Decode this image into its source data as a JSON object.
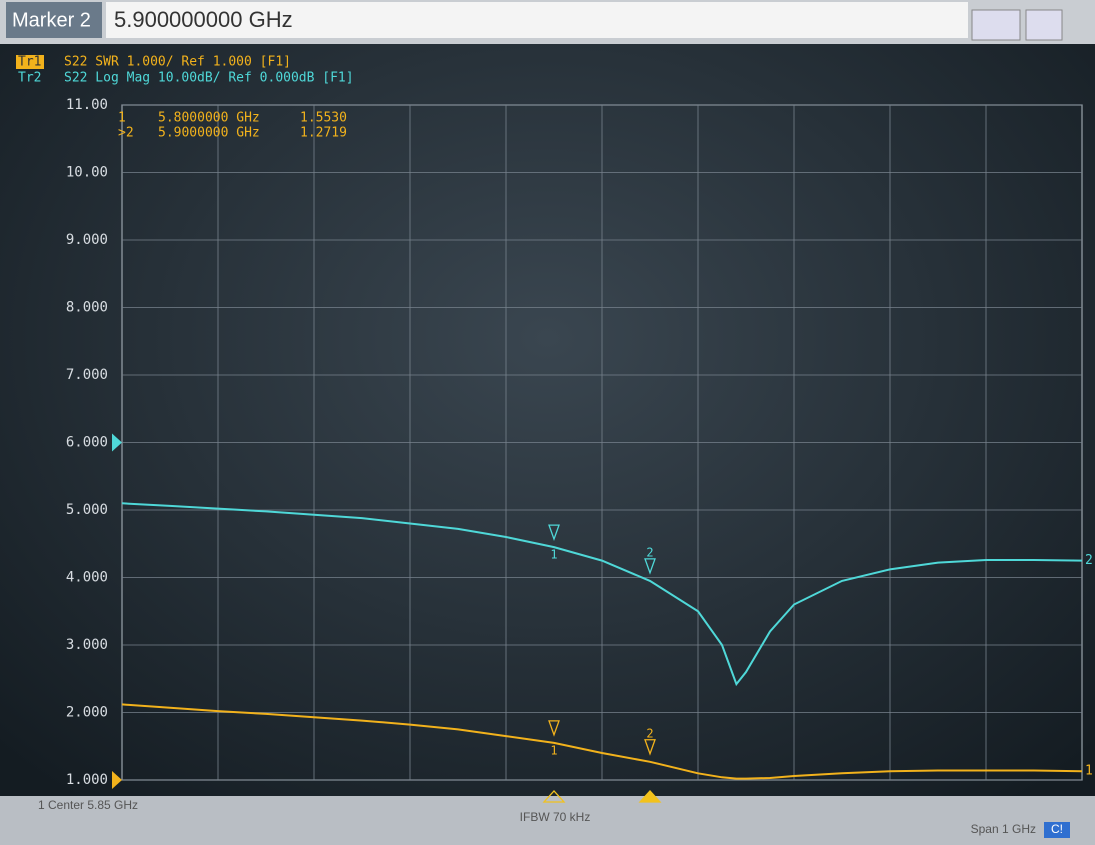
{
  "marker_bar": {
    "label": "Marker 2",
    "value": "5.900000000 GHz"
  },
  "marker_table": [
    [
      "1",
      "5.8000000 GHz",
      "1.5530"
    ],
    [
      ">2",
      "5.9000000 GHz",
      "1.2719"
    ]
  ],
  "chart_data": {
    "type": "line",
    "x": [
      5.35,
      5.4,
      5.45,
      5.5,
      5.55,
      5.6,
      5.65,
      5.7,
      5.75,
      5.8,
      5.85,
      5.9,
      5.95,
      5.975,
      5.99,
      6.0,
      6.025,
      6.05,
      6.1,
      6.15,
      6.2,
      6.25,
      6.3,
      6.35
    ],
    "xlim": [
      5.35,
      6.35
    ],
    "ylim": [
      1,
      11
    ],
    "yticks": [
      {
        "value": 11,
        "label": "11.00"
      },
      {
        "value": 10,
        "label": "10.00"
      },
      {
        "value": 9,
        "label": "9.000"
      },
      {
        "value": 8,
        "label": "8.000"
      },
      {
        "value": 7,
        "label": "7.000"
      },
      {
        "value": 6,
        "label": "6.000"
      },
      {
        "value": 5,
        "label": "5.000"
      },
      {
        "value": 4,
        "label": "4.000"
      },
      {
        "value": 3,
        "label": "3.000"
      },
      {
        "value": 2,
        "label": "2.000"
      },
      {
        "value": 1,
        "label": "1.000"
      }
    ],
    "y2lim": [
      -50,
      50
    ],
    "series": [
      {
        "id": "Tr1",
        "name": "S22 SWR 1.000/ Ref 1.000 [F1]",
        "end_label": "1",
        "ref": 1,
        "color": "#f2b21c",
        "values": [
          2.12,
          2.07,
          2.02,
          1.98,
          1.93,
          1.88,
          1.82,
          1.75,
          1.65,
          1.55,
          1.4,
          1.27,
          1.1,
          1.04,
          1.02,
          1.02,
          1.03,
          1.06,
          1.1,
          1.13,
          1.14,
          1.14,
          1.14,
          1.13
        ]
      },
      {
        "id": "Tr2",
        "name": "S22 Log Mag 10.00dB/ Ref 0.000dB [F1]",
        "end_label": "2",
        "ref": 0,
        "axis": "y2",
        "color": "#4fd8d8",
        "values": [
          -9,
          -9.4,
          -9.8,
          -10.2,
          -10.7,
          -11.2,
          -12,
          -12.8,
          -14,
          -15.5,
          -17.5,
          -20.5,
          -25,
          -30,
          -35.8,
          -34,
          -28,
          -24,
          -20.5,
          -18.8,
          -17.8,
          -17.4,
          -17.4,
          -17.5
        ]
      }
    ],
    "markers": [
      {
        "label": "1",
        "x": 5.8
      },
      {
        "label": "2",
        "x": 5.9
      }
    ],
    "active_marker": 1
  },
  "footer": {
    "center": "1 Center 5.85 GHz",
    "ifbw": "IFBW 70 kHz",
    "span": "Span 1 GHz",
    "cal": "C!"
  }
}
